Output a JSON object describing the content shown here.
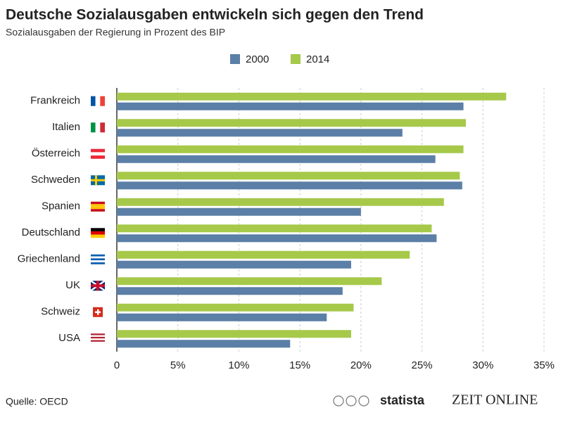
{
  "chart_data": {
    "type": "barh",
    "title": "Deutsche Sozialausgaben entwickeln sich gegen den Trend",
    "subtitle": "Sozialausgaben der Regierung in Prozent des BIP",
    "categories": [
      "Frankreich",
      "Italien",
      "Österreich",
      "Schweden",
      "Spanien",
      "Deutschland",
      "Griechenland",
      "UK",
      "Schweiz",
      "USA"
    ],
    "series": [
      {
        "name": "2000",
        "color": "#5b7fa6",
        "values": [
          28.4,
          23.4,
          26.1,
          28.3,
          20.0,
          26.2,
          19.2,
          18.5,
          17.2,
          14.2
        ]
      },
      {
        "name": "2014",
        "color": "#a6c94a",
        "values": [
          31.9,
          28.6,
          28.4,
          28.1,
          26.8,
          25.8,
          24.0,
          21.7,
          19.4,
          19.2
        ]
      }
    ],
    "xlim": [
      0,
      35
    ],
    "xticks": [
      0,
      {
        "value": 5,
        "label": "5%"
      },
      {
        "value": 10,
        "label": "10%"
      },
      {
        "value": 15,
        "label": "15%"
      },
      {
        "value": 20,
        "label": "20%"
      },
      {
        "value": 25,
        "label": "25%"
      },
      {
        "value": 30,
        "label": "30%"
      },
      {
        "value": 35,
        "label": "35%"
      }
    ],
    "grid": true,
    "source": "Quelle: OECD",
    "logos": [
      "statista",
      "ZEIT ONLINE"
    ]
  }
}
